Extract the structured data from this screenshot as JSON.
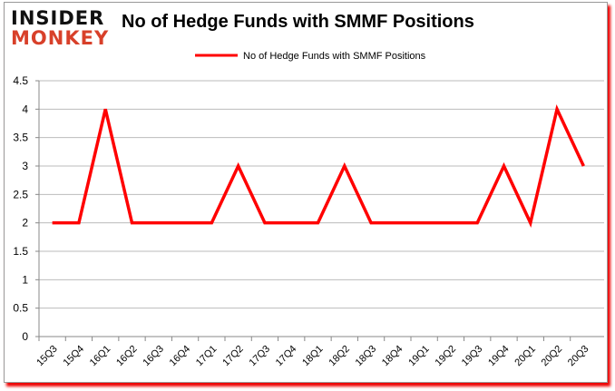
{
  "logo": {
    "line1": "INSIDER",
    "line2": "MONKEY"
  },
  "chart_data": {
    "type": "line",
    "title": "No of Hedge Funds with SMMF Positions",
    "categories": [
      "15Q3",
      "15Q4",
      "16Q1",
      "16Q2",
      "16Q3",
      "16Q4",
      "17Q1",
      "17Q2",
      "17Q3",
      "17Q4",
      "18Q1",
      "18Q2",
      "18Q3",
      "18Q4",
      "19Q1",
      "19Q2",
      "19Q3",
      "19Q4",
      "20Q1",
      "20Q2",
      "20Q3"
    ],
    "series": [
      {
        "name": "No of Hedge Funds with SMMF Positions",
        "color": "#ff0000",
        "values": [
          2,
          2,
          4,
          2,
          2,
          2,
          2,
          3,
          2,
          2,
          2,
          3,
          2,
          2,
          2,
          2,
          2,
          3,
          2,
          4,
          3
        ]
      }
    ],
    "yticks": [
      "0",
      "0.5",
      "1",
      "1.5",
      "2",
      "2.5",
      "3",
      "3.5",
      "4",
      "4.5"
    ],
    "ylim": [
      0,
      4.5
    ],
    "grid": true,
    "legend": "top-center"
  }
}
